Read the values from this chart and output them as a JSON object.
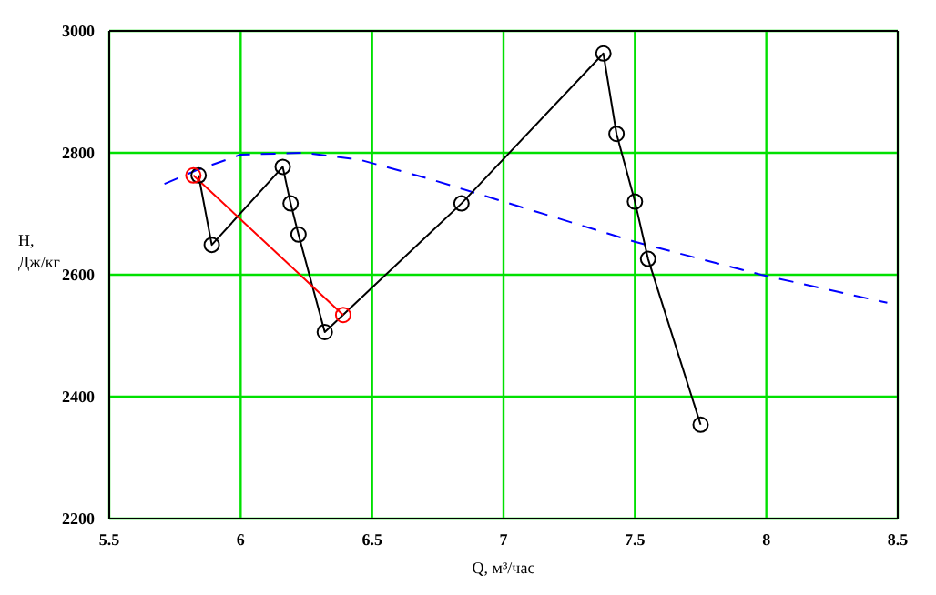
{
  "chart_data": {
    "type": "line",
    "xlabel": "Q, м³/час",
    "ylabel": "H, Дж/кг",
    "xlim": [
      5.5,
      8.5
    ],
    "xticks": [
      5.5,
      6,
      6.5,
      7,
      7.5,
      8,
      8.5
    ],
    "ylim": [
      2200,
      3000
    ],
    "yticks": [
      2200,
      2400,
      2600,
      2800,
      3000
    ],
    "grid": true,
    "marker": "circle",
    "line_style": "solid",
    "series": [
      {
        "color": "#0000ff",
        "marker": "none",
        "line_style": "dashed",
        "x": [
          5.71,
          5.83,
          6.0,
          6.24,
          6.45,
          6.72,
          7.0,
          7.5,
          7.98,
          8.46
        ],
        "values": [
          2749,
          2771,
          2797,
          2800,
          2789,
          2757,
          2720,
          2654,
          2600,
          2554
        ]
      },
      {
        "color": "#000000",
        "x": [
          5.84,
          5.89,
          6.16,
          6.19,
          6.22,
          6.32,
          6.84,
          7.38,
          7.43,
          7.5,
          7.55,
          7.75
        ],
        "values": [
          2763,
          2649,
          2777,
          2717,
          2666,
          2506,
          2717,
          2963,
          2831,
          2720,
          2626,
          2354
        ]
      },
      {
        "color": "#ff0000",
        "x": [
          5.82,
          6.39
        ],
        "values": [
          2763,
          2534
        ]
      }
    ]
  }
}
